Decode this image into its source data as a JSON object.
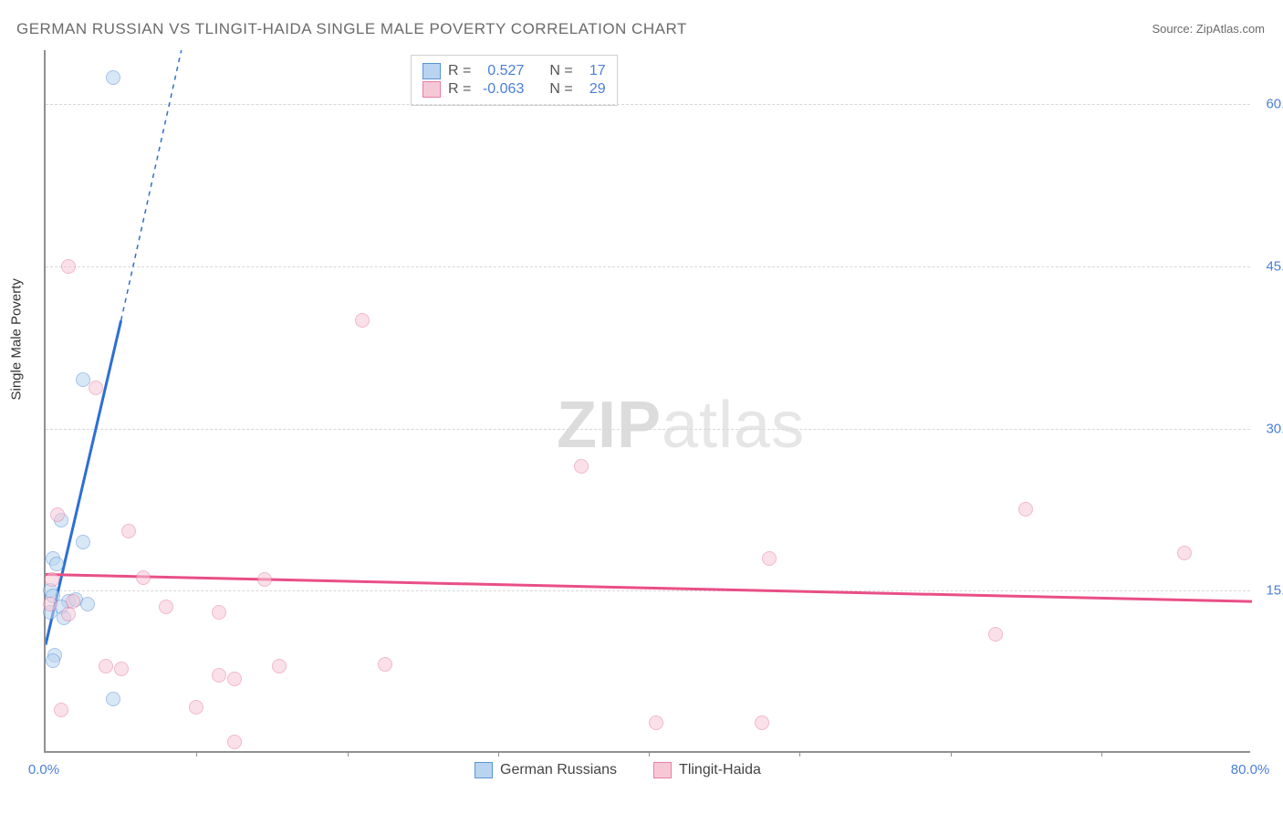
{
  "title": "GERMAN RUSSIAN VS TLINGIT-HAIDA SINGLE MALE POVERTY CORRELATION CHART",
  "source": "Source: ZipAtlas.com",
  "y_axis_label": "Single Male Poverty",
  "watermark_zip": "ZIP",
  "watermark_atlas": "atlas",
  "chart": {
    "type": "scatter",
    "xlim": [
      0,
      80
    ],
    "ylim": [
      0,
      65
    ],
    "x_ticks": [
      0,
      80
    ],
    "x_tick_labels": [
      "0.0%",
      "80.0%"
    ],
    "x_minor_ticks": [
      10,
      20,
      30,
      40,
      50,
      60,
      70
    ],
    "y_gridlines": [
      15,
      30,
      45,
      60
    ],
    "y_tick_labels": [
      "15.0%",
      "30.0%",
      "45.0%",
      "60.0%"
    ],
    "background_color": "#ffffff",
    "grid_color": "#d8d8d8",
    "grid_dash": true,
    "axis_color": "#909090",
    "tick_label_color": "#4a7fd8",
    "title_color": "#6b6b6b",
    "title_fontsize": 17,
    "label_fontsize": 15,
    "point_radius": 8,
    "point_opacity": 0.55,
    "series": [
      {
        "name": "German Russians",
        "color_fill": "#b9d4f0",
        "color_stroke": "#5a94d6",
        "r_label": "R =",
        "r_value": "0.527",
        "n_label": "N =",
        "n_value": "17",
        "trend": {
          "x1": 0,
          "y1": 10,
          "x2": 5,
          "y2": 40,
          "extend_x2": 9,
          "extend_y2": 65,
          "color": "#2d6fd3",
          "width": 3,
          "dash_extend": true
        },
        "points": [
          {
            "x": 4.5,
            "y": 62.5
          },
          {
            "x": 2.5,
            "y": 34.5
          },
          {
            "x": 1.0,
            "y": 21.5
          },
          {
            "x": 0.5,
            "y": 18.0
          },
          {
            "x": 0.7,
            "y": 17.5
          },
          {
            "x": 2.5,
            "y": 19.5
          },
          {
            "x": 0.3,
            "y": 15.0
          },
          {
            "x": 0.5,
            "y": 14.5
          },
          {
            "x": 1.5,
            "y": 14.0
          },
          {
            "x": 2.0,
            "y": 14.2
          },
          {
            "x": 1.0,
            "y": 13.5
          },
          {
            "x": 0.3,
            "y": 13.0
          },
          {
            "x": 2.8,
            "y": 13.8
          },
          {
            "x": 1.2,
            "y": 12.5
          },
          {
            "x": 0.6,
            "y": 9.0
          },
          {
            "x": 0.5,
            "y": 8.5
          },
          {
            "x": 4.5,
            "y": 5.0
          }
        ]
      },
      {
        "name": "Tlingit-Haida",
        "color_fill": "#f6c8d6",
        "color_stroke": "#e87fa5",
        "r_label": "R =",
        "r_value": "-0.063",
        "n_label": "N =",
        "n_value": "29",
        "trend": {
          "x1": 0,
          "y1": 16.5,
          "x2": 80,
          "y2": 14.0,
          "color": "#e94f86",
          "width": 3,
          "dash_extend": false
        },
        "points": [
          {
            "x": 1.5,
            "y": 45.0
          },
          {
            "x": 3.3,
            "y": 33.8
          },
          {
            "x": 21.0,
            "y": 40.0
          },
          {
            "x": 35.5,
            "y": 26.5
          },
          {
            "x": 65.0,
            "y": 22.5
          },
          {
            "x": 75.5,
            "y": 18.5
          },
          {
            "x": 48.0,
            "y": 18.0
          },
          {
            "x": 63.0,
            "y": 11.0
          },
          {
            "x": 0.8,
            "y": 22.0
          },
          {
            "x": 5.5,
            "y": 20.5
          },
          {
            "x": 6.5,
            "y": 16.2
          },
          {
            "x": 14.5,
            "y": 16.0
          },
          {
            "x": 8.0,
            "y": 13.5
          },
          {
            "x": 11.5,
            "y": 13.0
          },
          {
            "x": 0.3,
            "y": 13.8
          },
          {
            "x": 1.5,
            "y": 12.8
          },
          {
            "x": 4.0,
            "y": 8.0
          },
          {
            "x": 5.0,
            "y": 7.8
          },
          {
            "x": 11.5,
            "y": 7.2
          },
          {
            "x": 12.5,
            "y": 6.8
          },
          {
            "x": 15.5,
            "y": 8.0
          },
          {
            "x": 22.5,
            "y": 8.2
          },
          {
            "x": 1.0,
            "y": 4.0
          },
          {
            "x": 10.0,
            "y": 4.2
          },
          {
            "x": 12.5,
            "y": 1.0
          },
          {
            "x": 40.5,
            "y": 2.8
          },
          {
            "x": 47.5,
            "y": 2.8
          },
          {
            "x": 0.4,
            "y": 16.0
          },
          {
            "x": 1.8,
            "y": 14.0
          }
        ]
      }
    ],
    "legend_bottom": [
      {
        "label": "German Russians",
        "fill": "#b9d4f0",
        "stroke": "#5a94d6"
      },
      {
        "label": "Tlingit-Haida",
        "fill": "#f6c8d6",
        "stroke": "#e87fa5"
      }
    ]
  }
}
